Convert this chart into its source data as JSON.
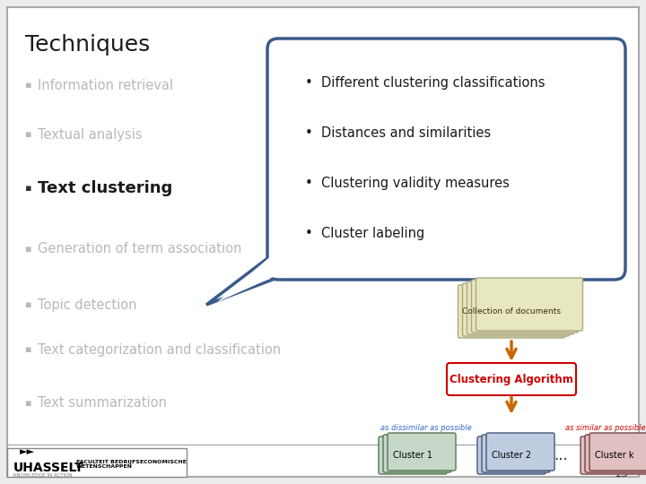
{
  "title": "Techniques",
  "left_items": [
    {
      "text": "Information retrieval",
      "active": false
    },
    {
      "text": "Textual analysis",
      "active": false
    },
    {
      "text": "Text clustering",
      "active": true
    },
    {
      "text": "Generation of term association",
      "active": false
    },
    {
      "text": "Topic detection",
      "active": false
    },
    {
      "text": "Text categorization and classification",
      "active": false
    },
    {
      "text": "Text summarization",
      "active": false
    }
  ],
  "bubble_items": [
    "Different clustering classifications",
    "Distances and similarities",
    "Clustering validity measures",
    "Cluster labeling"
  ],
  "bubble_color": "#3a5a8a",
  "active_color": "#1a1a1a",
  "inactive_color": "#b8b8b8",
  "title_color": "#1a1a1a",
  "bullet_active": "#333333",
  "bullet_inactive": "#b8b8b8",
  "bg_color": "#ececec",
  "slide_bg": "white"
}
